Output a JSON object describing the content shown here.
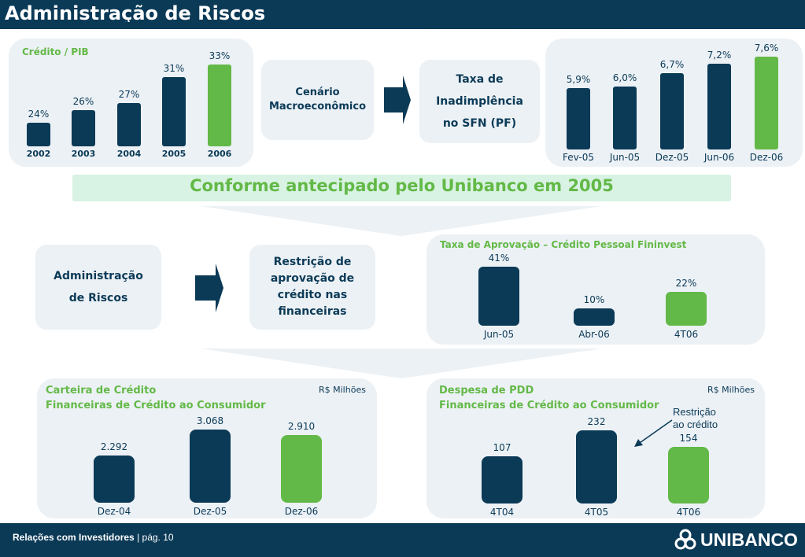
{
  "header": {
    "title": "Administração de Riscos"
  },
  "footer": {
    "section": "Relações com Investidores",
    "separator": " | ",
    "page": "pág. 10",
    "logo_text": "UNIBANCO"
  },
  "colors": {
    "navy": "#0b3a57",
    "green": "#63b947",
    "panel": "#ecf1f5",
    "banner": "#d8f2e3"
  },
  "flow_top": {
    "box1": "Cenário Macroeconômico",
    "box2_line1": "Taxa de",
    "box2_line2": "Inadimplência",
    "box2_line3": "no SFN (PF)"
  },
  "banner": "Conforme antecipado pelo Unibanco em 2005",
  "flow_middle": {
    "box1_line1": "Administração",
    "box1_line2": "de Riscos",
    "box2_line1": "Restrição de",
    "box2_line2": "aprovação de",
    "box2_line3": "crédito nas",
    "box2_line4": "financeiras"
  },
  "annotation": {
    "line1": "Restrição",
    "line2": "ao crédito"
  },
  "chart_data": [
    {
      "type": "bar",
      "title": "Crédito / PIB",
      "categories": [
        "2002",
        "2003",
        "2004",
        "2005",
        "2006"
      ],
      "values": [
        24,
        26,
        27,
        31,
        33
      ],
      "labels": [
        "24%",
        "26%",
        "27%",
        "31%",
        "33%"
      ],
      "highlight": "2006"
    },
    {
      "type": "bar",
      "title": "",
      "categories": [
        "Fev-05",
        "Jun-05",
        "Dez-05",
        "Jun-06",
        "Dez-06"
      ],
      "values": [
        5.9,
        6.0,
        6.7,
        7.2,
        7.6
      ],
      "labels": [
        "5,9%",
        "6,0%",
        "6,7%",
        "7,2%",
        "7,6%"
      ],
      "highlight": "Dez-06"
    },
    {
      "type": "bar",
      "title": "Taxa de Aprovação – Crédito Pessoal Fininvest",
      "categories": [
        "Jun-05",
        "Abr-06",
        "4T06"
      ],
      "values": [
        41,
        10,
        22
      ],
      "labels": [
        "41%",
        "10%",
        "22%"
      ],
      "highlight": "4T06"
    },
    {
      "type": "bar",
      "title": "Carteira de Crédito",
      "subtitle": "Financeiras de Crédito ao Consumidor",
      "unit": "R$ Milhões",
      "categories": [
        "Dez-04",
        "Dez-05",
        "Dez-06"
      ],
      "values": [
        2292,
        3068,
        2910
      ],
      "labels": [
        "2.292",
        "3.068",
        "2.910"
      ],
      "highlight": "Dez-06"
    },
    {
      "type": "bar",
      "title": "Despesa de PDD",
      "subtitle": "Financeiras de Crédito ao Consumidor",
      "unit": "R$ Milhões",
      "categories": [
        "4T04",
        "4T05",
        "4T06"
      ],
      "values": [
        107,
        232,
        154
      ],
      "labels": [
        "107",
        "232",
        "154"
      ],
      "highlight": "4T06"
    }
  ]
}
